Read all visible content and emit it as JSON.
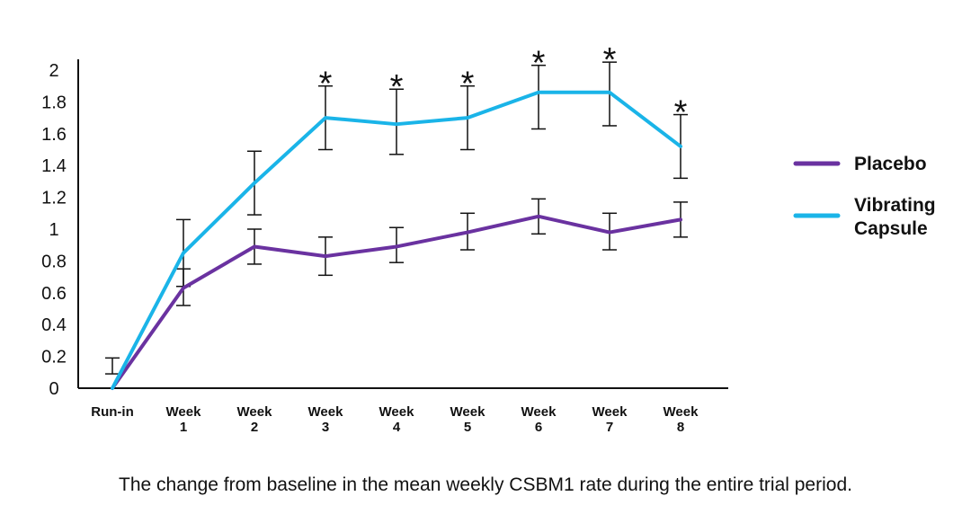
{
  "chart_data": {
    "type": "line",
    "title": "",
    "xlabel": "",
    "ylabel": "",
    "ylim": [
      0,
      2
    ],
    "yticks": [
      "0",
      "0.2",
      "0.4",
      "0.6",
      "0.8",
      "1",
      "1.2",
      "1.4",
      "1.6",
      "1.8",
      "2"
    ],
    "categories": [
      [
        "Run-in"
      ],
      [
        "Week",
        "1"
      ],
      [
        "Week",
        "2"
      ],
      [
        "Week",
        "3"
      ],
      [
        "Week",
        "4"
      ],
      [
        "Week",
        "5"
      ],
      [
        "Week",
        "6"
      ],
      [
        "Week",
        "7"
      ],
      [
        "Week",
        "8"
      ]
    ],
    "series": [
      {
        "name": "Placebo",
        "color": "#6a32a0",
        "values": [
          0,
          0.63,
          0.89,
          0.83,
          0.89,
          0.98,
          1.08,
          0.98,
          1.06
        ],
        "err_low": [
          null,
          0.52,
          0.78,
          0.71,
          0.79,
          0.87,
          0.97,
          0.87,
          0.95
        ],
        "err_high": [
          null,
          0.75,
          1.0,
          0.95,
          1.01,
          1.1,
          1.19,
          1.1,
          1.17
        ]
      },
      {
        "name": "Vibrating Capsule",
        "color": "#1ab4e8",
        "values": [
          0,
          0.85,
          1.29,
          1.7,
          1.66,
          1.7,
          1.86,
          1.86,
          1.52
        ],
        "err_low": [
          0.09,
          0.64,
          1.09,
          1.5,
          1.47,
          1.5,
          1.63,
          1.65,
          1.32
        ],
        "err_high": [
          0.19,
          1.06,
          1.49,
          1.9,
          1.88,
          1.9,
          2.03,
          2.05,
          1.72
        ]
      }
    ],
    "significance_marker": "*",
    "significant_at": [
      3,
      4,
      5,
      6,
      7,
      8
    ],
    "legend_position": "right",
    "grid": false
  },
  "legend": {
    "items": [
      {
        "label_lines": [
          "Placebo"
        ],
        "color": "#6a32a0"
      },
      {
        "label_lines": [
          "Vibrating",
          "Capsule"
        ],
        "color": "#1ab4e8"
      }
    ]
  },
  "caption": "The change from baseline in the mean weekly CSBM1 rate during the entire trial period."
}
